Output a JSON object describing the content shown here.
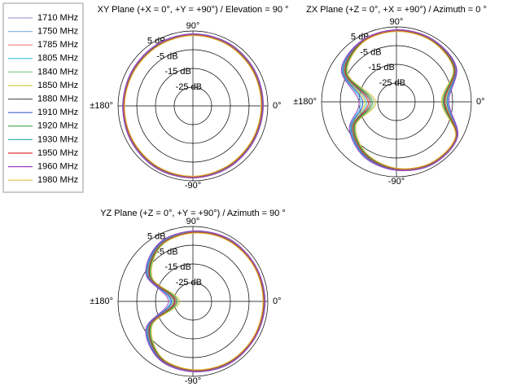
{
  "chart_data": [
    {
      "type": "polar",
      "title": "XY Plane (+X = 0°, +Y = +90°) / Elevation = 90 °",
      "theta": [
        0,
        30,
        60,
        90,
        120,
        150,
        180,
        210,
        240,
        270,
        300,
        330
      ],
      "rlim": [
        -35,
        5
      ],
      "rticks": [
        {
          "value": 5,
          "label": "5 dB"
        },
        {
          "value": -5,
          "label": "-5 dB"
        },
        {
          "value": -15,
          "label": "-15 dB"
        },
        {
          "value": -25,
          "label": "-25 dB"
        }
      ],
      "thetaticks": [
        {
          "value": 90,
          "label": "90°"
        },
        {
          "value": 0,
          "label": "0°"
        },
        {
          "value": -90,
          "label": "-90°"
        },
        {
          "value": 180,
          "label": "±180°"
        }
      ],
      "series": [
        {
          "name": "1710 MHz",
          "color": "#a0a0d0",
          "values": [
            2,
            2.5,
            3,
            3,
            2.5,
            2,
            2,
            2.5,
            3,
            3,
            2.5,
            2
          ]
        },
        {
          "name": "1750 MHz",
          "color": "#8fb8e0",
          "values": [
            2.3,
            2.8,
            3.3,
            3.2,
            2.7,
            2.3,
            2.2,
            2.8,
            3.3,
            3.2,
            2.8,
            2.3
          ]
        },
        {
          "name": "1785 MHz",
          "color": "#f08080",
          "values": [
            1.7,
            2.2,
            2.7,
            2.8,
            2.3,
            1.7,
            1.8,
            2.2,
            2.7,
            2.8,
            2.2,
            1.7
          ]
        },
        {
          "name": "1805 MHz",
          "color": "#40c0e0",
          "values": [
            2.5,
            3,
            3.4,
            3.5,
            3,
            2.4,
            2.5,
            3,
            3.5,
            3.4,
            3,
            2.5
          ]
        },
        {
          "name": "1840 MHz",
          "color": "#90d090",
          "values": [
            1.5,
            2,
            2.5,
            2.6,
            2,
            1.5,
            1.6,
            2,
            2.5,
            2.6,
            2,
            1.5
          ]
        },
        {
          "name": "1850 MHz",
          "color": "#c8d040",
          "values": [
            2.2,
            2.7,
            3.2,
            3.1,
            2.7,
            2.2,
            2.1,
            2.7,
            3.1,
            3.2,
            2.6,
            2.2
          ]
        },
        {
          "name": "1880 MHz",
          "color": "#606060",
          "values": [
            1.8,
            2.3,
            2.8,
            2.9,
            2.3,
            1.9,
            1.8,
            2.3,
            2.9,
            2.8,
            2.4,
            1.8
          ]
        },
        {
          "name": "1910 MHz",
          "color": "#4060d0",
          "values": [
            2.4,
            2.9,
            3.4,
            3.3,
            2.9,
            2.4,
            2.3,
            2.9,
            3.4,
            3.3,
            2.9,
            2.4
          ]
        },
        {
          "name": "1920 MHz",
          "color": "#40a040",
          "values": [
            1.6,
            2.1,
            2.6,
            2.7,
            2.1,
            1.6,
            1.7,
            2.1,
            2.6,
            2.7,
            2.1,
            1.6
          ]
        },
        {
          "name": "1930 MHz",
          "color": "#40b0b0",
          "values": [
            2.1,
            2.6,
            3.1,
            3.1,
            2.6,
            2.1,
            2.1,
            2.6,
            3.1,
            3.1,
            2.6,
            2.1
          ]
        },
        {
          "name": "1950 MHz",
          "color": "#e03030",
          "values": [
            1.9,
            2.4,
            2.9,
            2.9,
            2.4,
            1.9,
            1.9,
            2.4,
            2.9,
            2.9,
            2.4,
            1.9
          ]
        },
        {
          "name": "1960 MHz",
          "color": "#a040c0",
          "values": [
            2.6,
            3.1,
            3.6,
            3.5,
            3.1,
            2.6,
            2.5,
            3.1,
            3.6,
            3.5,
            3.1,
            2.6
          ]
        },
        {
          "name": "1980 MHz",
          "color": "#e0c040",
          "values": [
            1.4,
            1.9,
            2.4,
            2.5,
            1.9,
            1.4,
            1.5,
            1.9,
            2.4,
            2.5,
            1.9,
            1.4
          ]
        }
      ]
    },
    {
      "type": "polar",
      "title": "ZX Plane (+Z = 0°, +X = +90°) / Azimuth = 0 °",
      "theta": [
        0,
        30,
        60,
        90,
        120,
        150,
        180,
        210,
        240,
        270,
        300,
        330
      ],
      "rlim": [
        -35,
        5
      ],
      "rticks": [
        {
          "value": 5,
          "label": "5 dB"
        },
        {
          "value": -5,
          "label": "-5 dB"
        },
        {
          "value": -15,
          "label": "-15 dB"
        },
        {
          "value": -25,
          "label": "-25 dB"
        }
      ],
      "thetaticks": [
        {
          "value": 90,
          "label": "90°"
        },
        {
          "value": 0,
          "label": "0°"
        },
        {
          "value": -90,
          "label": "-90°"
        },
        {
          "value": 180,
          "label": "±180°"
        }
      ],
      "series": [
        {
          "values": [
            -9,
            1,
            3,
            3,
            2,
            -3,
            -20,
            -8,
            -2,
            1,
            3,
            2
          ]
        },
        {
          "values": [
            -8,
            1.5,
            3.3,
            3.2,
            2.3,
            -2,
            -17,
            -7,
            -1.5,
            1.3,
            3.3,
            2.4
          ]
        },
        {
          "values": [
            -10,
            0.5,
            2.7,
            2.8,
            1.6,
            -4,
            -22,
            -9,
            -2.5,
            0.7,
            2.7,
            1.6
          ]
        },
        {
          "values": [
            -7.5,
            1.8,
            3.5,
            3.4,
            2.5,
            -1.5,
            -16,
            -6.5,
            -1,
            1.5,
            3.5,
            2.6
          ]
        },
        {
          "values": [
            -10.5,
            0.2,
            2.5,
            2.6,
            1.4,
            -4.5,
            -23,
            -9.5,
            -3,
            0.5,
            2.5,
            1.5
          ]
        },
        {
          "values": [
            -8.5,
            1.3,
            3.2,
            3.1,
            2.2,
            -2.5,
            -18,
            -7.5,
            -1.8,
            1.2,
            3.2,
            2.2
          ]
        },
        {
          "values": [
            -9.5,
            0.8,
            2.8,
            2.9,
            1.8,
            -3.5,
            -21,
            -8.5,
            -2.2,
            0.8,
            2.8,
            1.8
          ]
        },
        {
          "values": [
            -8,
            1.6,
            3.4,
            3.3,
            2.4,
            -2,
            -17,
            -7,
            -1.4,
            1.4,
            3.4,
            2.5
          ]
        },
        {
          "values": [
            -10,
            0.4,
            2.6,
            2.7,
            1.5,
            -4,
            -22,
            -9,
            -2.7,
            0.6,
            2.6,
            1.6
          ]
        },
        {
          "values": [
            -9,
            1.1,
            3.1,
            3.1,
            2.1,
            -2.8,
            -19,
            -7.8,
            -1.9,
            1.1,
            3.1,
            2.1
          ]
        },
        {
          "values": [
            -9.2,
            0.9,
            2.9,
            2.9,
            1.9,
            -3.2,
            -20,
            -8.2,
            -2.1,
            0.9,
            2.9,
            1.9
          ]
        },
        {
          "values": [
            -7,
            2,
            3.6,
            3.5,
            2.6,
            -1,
            -15,
            -6,
            -0.8,
            1.6,
            3.6,
            2.7
          ]
        },
        {
          "values": [
            -11,
            0,
            2.4,
            2.5,
            1.3,
            -5,
            -24,
            -10,
            -3.2,
            0.4,
            2.4,
            1.4
          ]
        }
      ]
    },
    {
      "type": "polar",
      "title": "YZ Plane (+Z = 0°, +Y = +90°) / Azimuth = 90 °",
      "theta": [
        0,
        30,
        60,
        90,
        120,
        150,
        180,
        210,
        240,
        270,
        300,
        330
      ],
      "rlim": [
        -35,
        5
      ],
      "rticks": [
        {
          "value": 5,
          "label": "5 dB"
        },
        {
          "value": -5,
          "label": "-5 dB"
        },
        {
          "value": -15,
          "label": "-15 dB"
        },
        {
          "value": -25,
          "label": "-25 dB"
        }
      ],
      "thetaticks": [
        {
          "value": 90,
          "label": "90°"
        },
        {
          "value": 0,
          "label": "0°"
        },
        {
          "value": -90,
          "label": "-90°"
        },
        {
          "value": 180,
          "label": "±180°"
        }
      ],
      "series": [
        {
          "values": [
            3,
            3,
            3,
            2,
            0,
            -8,
            -25,
            -8,
            0,
            2,
            3,
            3
          ]
        },
        {
          "values": [
            3.3,
            3.2,
            3.3,
            2.3,
            0.5,
            -7,
            -24,
            -7,
            0.4,
            2.3,
            3.3,
            3.2
          ]
        },
        {
          "values": [
            2.7,
            2.8,
            2.7,
            1.7,
            -0.5,
            -9,
            -26,
            -9,
            -0.4,
            1.7,
            2.7,
            2.8
          ]
        },
        {
          "values": [
            3.5,
            3.4,
            3.4,
            2.5,
            0.8,
            -6.5,
            -23,
            -6.5,
            0.7,
            2.5,
            3.4,
            3.5
          ]
        },
        {
          "values": [
            2.5,
            2.6,
            2.6,
            1.5,
            -0.8,
            -9.5,
            -27,
            -9.5,
            -0.7,
            1.5,
            2.6,
            2.5
          ]
        },
        {
          "values": [
            3.2,
            3.1,
            3.2,
            2.2,
            0.3,
            -7.5,
            -24.5,
            -7.5,
            0.2,
            2.2,
            3.2,
            3.1
          ]
        },
        {
          "values": [
            2.8,
            2.9,
            2.8,
            1.8,
            -0.3,
            -8.5,
            -25.5,
            -8.5,
            -0.2,
            1.8,
            2.8,
            2.9
          ]
        },
        {
          "values": [
            3.4,
            3.3,
            3.4,
            2.4,
            0.6,
            -7,
            -23.5,
            -7,
            0.5,
            2.4,
            3.4,
            3.3
          ]
        },
        {
          "values": [
            2.6,
            2.7,
            2.6,
            1.6,
            -0.6,
            -9,
            -26.5,
            -9,
            -0.5,
            1.6,
            2.6,
            2.7
          ]
        },
        {
          "values": [
            3.1,
            3.1,
            3.1,
            2.1,
            0.2,
            -7.8,
            -24.8,
            -7.8,
            0.1,
            2.1,
            3.1,
            3.1
          ]
        },
        {
          "values": [
            2.9,
            2.9,
            2.9,
            1.9,
            -0.2,
            -8.2,
            -25.2,
            -8.2,
            -0.1,
            1.9,
            2.9,
            2.9
          ]
        },
        {
          "values": [
            3.6,
            3.5,
            3.6,
            2.6,
            1,
            -6,
            -22,
            -6,
            0.9,
            2.6,
            3.6,
            3.5
          ]
        },
        {
          "values": [
            2.4,
            2.5,
            2.4,
            1.4,
            -1,
            -10,
            -28,
            -10,
            -0.9,
            1.4,
            2.4,
            2.5
          ]
        }
      ]
    }
  ]
}
